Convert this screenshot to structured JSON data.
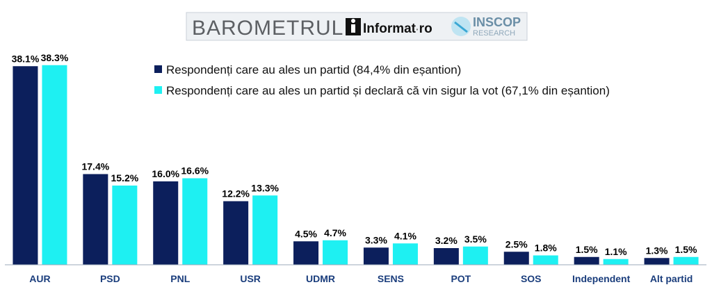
{
  "header": {
    "barometrul": "BAROMETRUL",
    "informat_brand": "Informat",
    "informat_dot": "·",
    "informat_tld": "ro",
    "inscop_top": "INSCOP",
    "inscop_bottom": "RESEARCH"
  },
  "colors": {
    "series1": "#0c1f5c",
    "series2": "#1ef0f2",
    "axis": "#9ba8b8",
    "category_text": "#1a3d7c",
    "header_bg": "#eef1f4"
  },
  "chart_data": {
    "type": "bar",
    "categories": [
      "AUR",
      "PSD",
      "PNL",
      "USR",
      "UDMR",
      "SENS",
      "POT",
      "SOS",
      "Independent",
      "Alt partid"
    ],
    "series": [
      {
        "name": "Respondenți care au ales un partid (84,4% din eșantion)",
        "values": [
          38.1,
          17.4,
          16.0,
          12.2,
          4.5,
          3.3,
          3.2,
          2.5,
          1.5,
          1.3
        ],
        "labels": [
          "38.1%",
          "17.4%",
          "16.0%",
          "12.2%",
          "4.5%",
          "3.3%",
          "3.2%",
          "2.5%",
          "1.5%",
          "1.3%"
        ]
      },
      {
        "name": "Respondenți care au ales un partid și declară că vin sigur la vot (67,1% din eșantion)",
        "values": [
          38.3,
          15.2,
          16.6,
          13.3,
          4.7,
          4.1,
          3.5,
          1.8,
          1.1,
          1.5
        ],
        "labels": [
          "38.3%",
          "15.2%",
          "16.6%",
          "13.3%",
          "4.7%",
          "4.1%",
          "3.5%",
          "1.8%",
          "1.1%",
          "1.5%"
        ]
      }
    ],
    "ylim": [
      0,
      40
    ],
    "grid": false,
    "legend_position": "top-center"
  }
}
